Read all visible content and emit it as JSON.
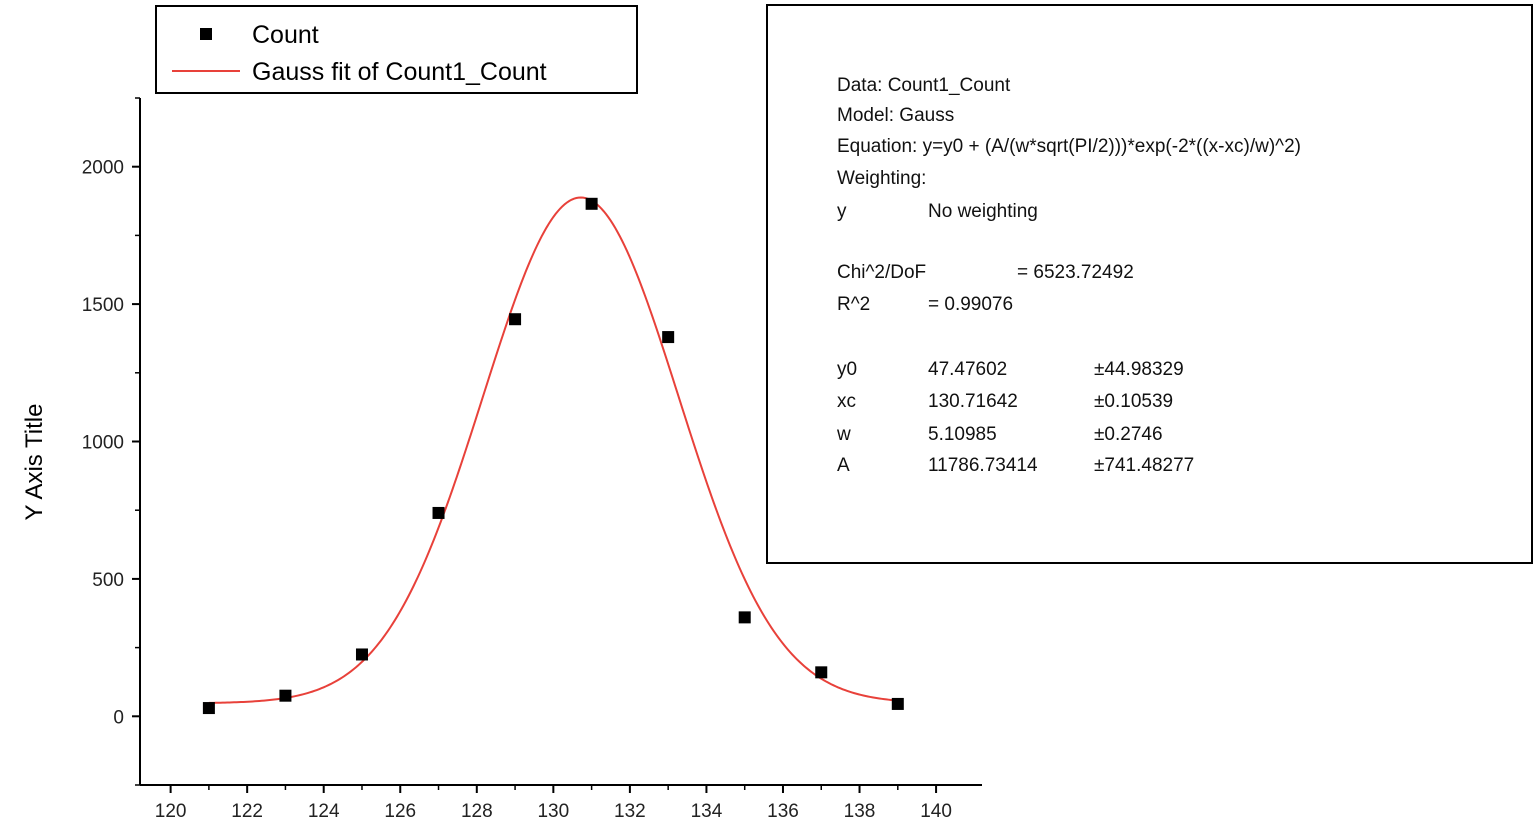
{
  "chart_data": {
    "type": "scatter",
    "title": "",
    "xlabel": "",
    "ylabel": "Y Axis Title",
    "xlim": [
      119.2,
      141.2
    ],
    "ylim": [
      -250,
      2250
    ],
    "xticks": [
      120,
      122,
      124,
      126,
      128,
      130,
      132,
      134,
      136,
      138,
      140
    ],
    "xtick_labels": [
      "120",
      "122",
      "124",
      "126",
      "128",
      "130",
      "132",
      "134",
      "136",
      "138",
      "140"
    ],
    "yticks": [
      0,
      500,
      1000,
      1500,
      2000
    ],
    "ytick_labels": [
      "0",
      "500",
      "1000",
      "1500",
      "2000"
    ],
    "grid": false,
    "legend_position": "top-left",
    "colors": {
      "points": "#000000",
      "fit": "#e8413a",
      "axes": "#000000"
    },
    "series": [
      {
        "name": "Count",
        "kind": "scatter",
        "x": [
          121,
          123,
          125,
          127,
          129,
          131,
          133,
          135,
          137,
          139
        ],
        "y": [
          30,
          75,
          225,
          740,
          1445,
          1865,
          1380,
          360,
          160,
          45
        ]
      },
      {
        "name": "Gauss fit of Count1_Count",
        "kind": "fit",
        "model": "gauss",
        "params": {
          "y0": 47.47602,
          "xc": 130.71642,
          "w": 5.10985,
          "A": 11786.73414
        },
        "x_range": [
          121,
          139
        ]
      }
    ]
  },
  "stats_box": {
    "lines": [
      "Data: Count1_Count",
      "Model: Gauss",
      "Equation: y=y0 + (A/(w*sqrt(PI/2)))*exp(-2*((x-xc)/w)^2)",
      "Weighting:"
    ],
    "weighting_row": [
      "y",
      "No weighting"
    ],
    "chi2_row": [
      "Chi^2/DoF",
      "= 6523.72492"
    ],
    "r2_row": [
      "R^2",
      "= 0.99076"
    ],
    "params": [
      [
        "y0",
        "47.47602",
        "±44.98329"
      ],
      [
        "xc",
        "130.71642",
        "±0.10539"
      ],
      [
        "w",
        "5.10985",
        "±0.2746"
      ],
      [
        "A",
        "11786.73414",
        "±741.48277"
      ]
    ]
  }
}
